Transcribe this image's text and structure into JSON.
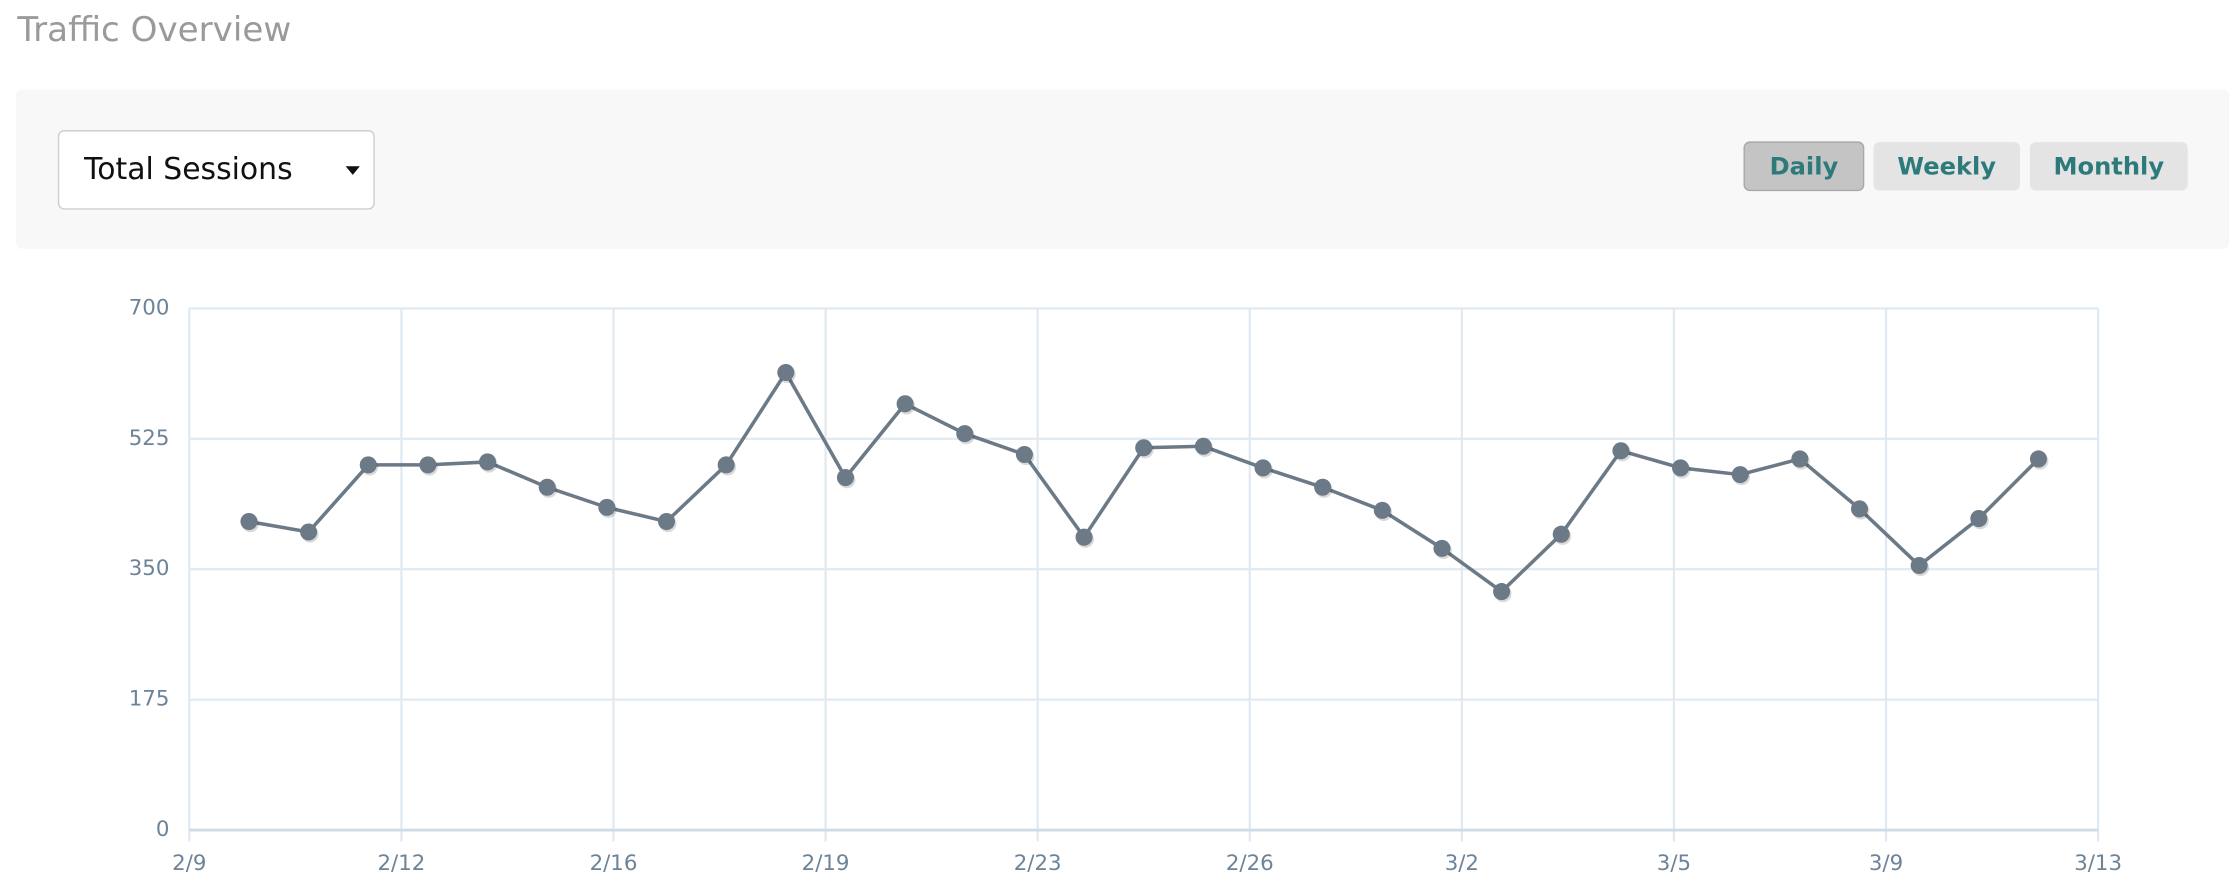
{
  "header": {
    "title": "Traffic Overview"
  },
  "controls": {
    "dropdown": "Total Sessions",
    "buttons": [
      "Daily",
      "Weekly",
      "Monthly"
    ]
  },
  "chart_data": {
    "type": "line",
    "x": [
      "2/10",
      "2/11",
      "2/12",
      "2/13",
      "2/14",
      "2/15",
      "2/16",
      "2/17",
      "2/18",
      "2/19",
      "2/20",
      "2/21",
      "2/22",
      "2/23",
      "2/24",
      "2/25",
      "2/26",
      "2/27",
      "2/28",
      "3/1",
      "3/2",
      "3/3",
      "3/4",
      "3/5",
      "3/6",
      "3/7",
      "3/8",
      "3/9",
      "3/10",
      "3/11",
      "3/12"
    ],
    "series": [
      {
        "color": "#6b7a86",
        "values": [
          414,
          400,
          490,
          490,
          494,
          460,
          433,
          414,
          490,
          614,
          473,
          572,
          532,
          504,
          393,
          513,
          515,
          486,
          460,
          429,
          378,
          320,
          397,
          509,
          486,
          477,
          498,
          431,
          355,
          418,
          498
        ]
      }
    ],
    "xlim": [
      "2/9",
      "3/13"
    ],
    "xticks": [
      "2/9",
      "2/12",
      "2/16",
      "2/19",
      "2/23",
      "2/26",
      "3/2",
      "3/5",
      "3/9",
      "3/13"
    ],
    "ylim": [
      0,
      700
    ],
    "yticks": [
      0,
      175,
      350,
      525,
      700
    ],
    "grid": true
  }
}
